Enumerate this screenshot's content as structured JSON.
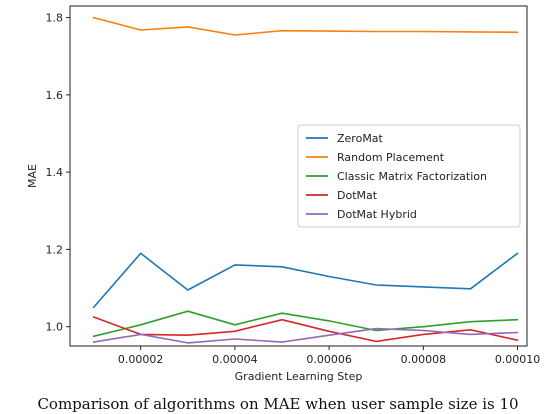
{
  "chart_data": {
    "type": "line",
    "xlabel": "Gradient Learning Step",
    "ylabel": "MAE",
    "xlim": [
      5e-06,
      0.000102
    ],
    "ylim": [
      0.95,
      1.83
    ],
    "x_ticks": [
      {
        "value": 2e-05,
        "label": "0.00002"
      },
      {
        "value": 4e-05,
        "label": "0.00004"
      },
      {
        "value": 6e-05,
        "label": "0.00006"
      },
      {
        "value": 8e-05,
        "label": "0.00008"
      },
      {
        "value": 0.0001,
        "label": "0.00010"
      }
    ],
    "y_ticks": [
      {
        "value": 1.0,
        "label": "1.0"
      },
      {
        "value": 1.2,
        "label": "1.2"
      },
      {
        "value": 1.4,
        "label": "1.4"
      },
      {
        "value": 1.6,
        "label": "1.6"
      },
      {
        "value": 1.8,
        "label": "1.8"
      }
    ],
    "x": [
      1e-05,
      2e-05,
      3e-05,
      4e-05,
      5e-05,
      6e-05,
      7e-05,
      8e-05,
      9e-05,
      0.0001
    ],
    "series": [
      {
        "name": "ZeroMat",
        "color": "#1f77b4",
        "values": [
          1.05,
          1.19,
          1.095,
          1.16,
          1.155,
          1.13,
          1.108,
          1.103,
          1.098,
          1.19
        ]
      },
      {
        "name": "Random Placement",
        "color": "#ff7f0e",
        "values": [
          1.8,
          1.768,
          1.776,
          1.755,
          1.766,
          1.765,
          1.764,
          1.764,
          1.763,
          1.762
        ]
      },
      {
        "name": "Classic Matrix Factorization",
        "color": "#2ca02c",
        "values": [
          0.975,
          1.005,
          1.04,
          1.005,
          1.035,
          1.015,
          0.99,
          1.0,
          1.013,
          1.018
        ]
      },
      {
        "name": "DotMat",
        "color": "#d62728",
        "values": [
          1.025,
          0.98,
          0.978,
          0.988,
          1.018,
          0.988,
          0.962,
          0.98,
          0.992,
          0.965
        ]
      },
      {
        "name": "DotMat Hybrid",
        "color": "#9467bd",
        "values": [
          0.96,
          0.98,
          0.958,
          0.968,
          0.96,
          0.978,
          0.995,
          0.99,
          0.98,
          0.985
        ]
      }
    ],
    "legend_position": "center-right",
    "grid": false
  },
  "caption": "Comparison of algorithms on MAE when user sample size is 10"
}
